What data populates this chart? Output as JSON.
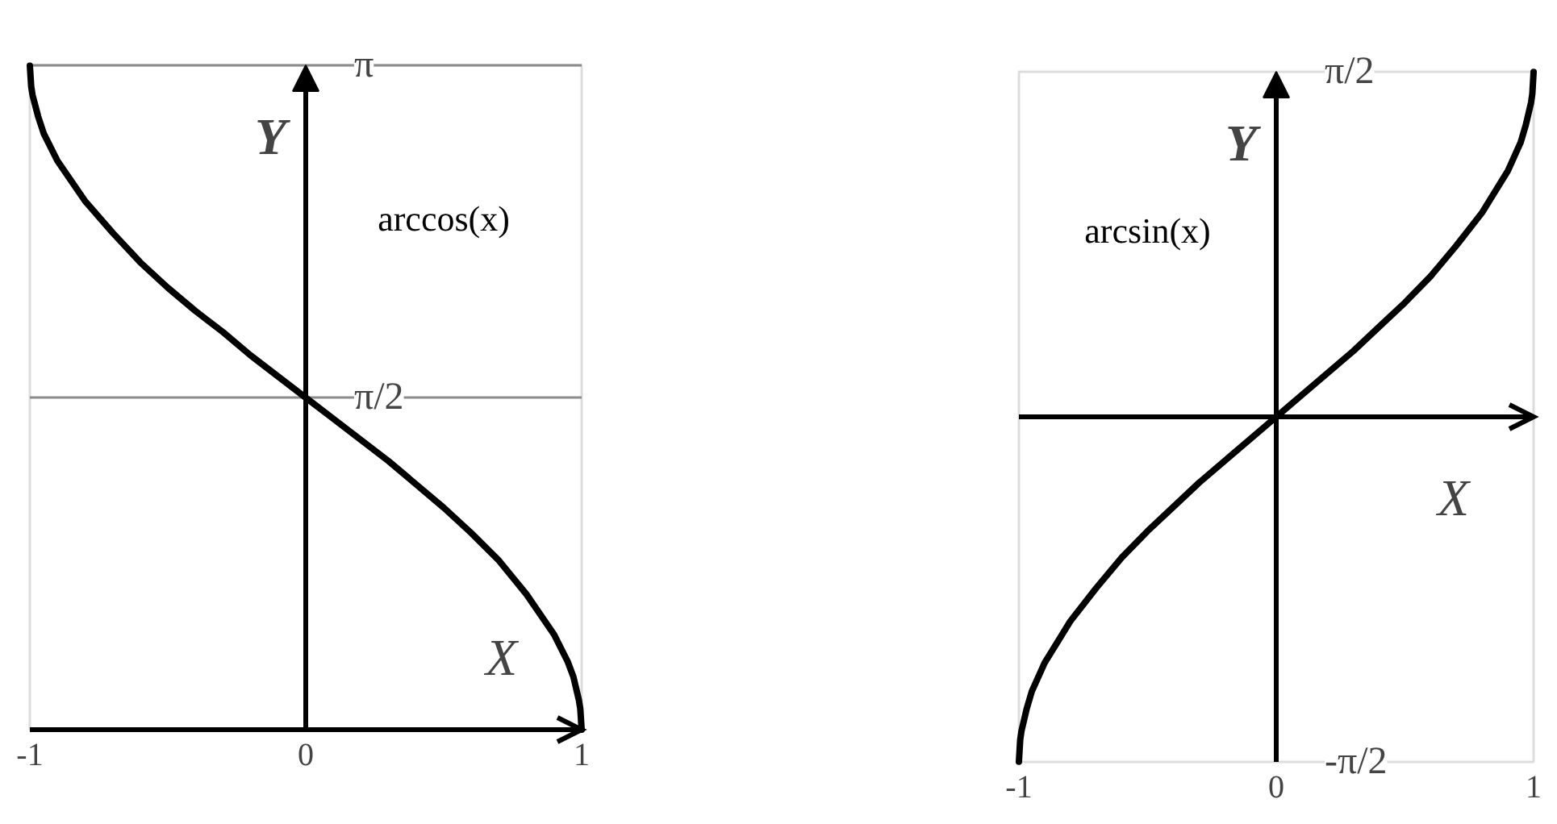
{
  "chart_data": [
    {
      "type": "line",
      "xlabel": "X",
      "ylabel": "Y",
      "xlim": [
        -1,
        1
      ],
      "ylim": [
        0,
        3.1416
      ],
      "xticks": [
        -1,
        0,
        1
      ],
      "yticks": [
        {
          "value": 1.5708,
          "label": "π/2"
        },
        {
          "value": 3.1416,
          "label": "π"
        }
      ],
      "grid": "y",
      "x": [
        -1,
        -0.995,
        -0.99,
        -0.97,
        -0.95,
        -0.9,
        -0.8,
        -0.7,
        -0.6,
        -0.5,
        -0.4,
        -0.3,
        -0.2,
        -0.1,
        0,
        0.1,
        0.2,
        0.3,
        0.4,
        0.5,
        0.6,
        0.7,
        0.8,
        0.9,
        0.95,
        0.97,
        0.99,
        0.995,
        1
      ],
      "series": [
        {
          "name": "arccos(x)",
          "color": "#000000",
          "values": [
            3.14,
            3.04,
            3.0,
            2.9,
            2.82,
            2.69,
            2.5,
            2.35,
            2.21,
            2.09,
            1.98,
            1.88,
            1.77,
            1.67,
            1.57,
            1.47,
            1.37,
            1.27,
            1.16,
            1.05,
            0.93,
            0.8,
            0.64,
            0.45,
            0.32,
            0.25,
            0.14,
            0.1,
            0
          ]
        }
      ]
    },
    {
      "type": "line",
      "xlabel": "X",
      "ylabel": "Y",
      "xlim": [
        -1,
        1
      ],
      "ylim": [
        -1.5708,
        1.5708
      ],
      "xticks": [
        -1,
        0,
        1
      ],
      "yticks": [
        {
          "value": -1.5708,
          "label": "-π/2"
        },
        {
          "value": 1.5708,
          "label": "π/2"
        }
      ],
      "x": [
        -1,
        -0.995,
        -0.99,
        -0.97,
        -0.95,
        -0.9,
        -0.8,
        -0.7,
        -0.6,
        -0.5,
        -0.4,
        -0.3,
        -0.2,
        -0.1,
        0,
        0.1,
        0.2,
        0.3,
        0.4,
        0.5,
        0.6,
        0.7,
        0.8,
        0.9,
        0.95,
        0.97,
        0.99,
        0.995,
        1
      ],
      "series": [
        {
          "name": "arcsin(x)",
          "color": "#000000",
          "values": [
            -1.57,
            -1.47,
            -1.43,
            -1.33,
            -1.25,
            -1.12,
            -0.93,
            -0.78,
            -0.64,
            -0.52,
            -0.41,
            -0.3,
            -0.2,
            -0.1,
            0,
            0.1,
            0.2,
            0.3,
            0.41,
            0.52,
            0.64,
            0.78,
            0.93,
            1.12,
            1.25,
            1.33,
            1.43,
            1.47,
            1.57
          ]
        }
      ]
    }
  ]
}
